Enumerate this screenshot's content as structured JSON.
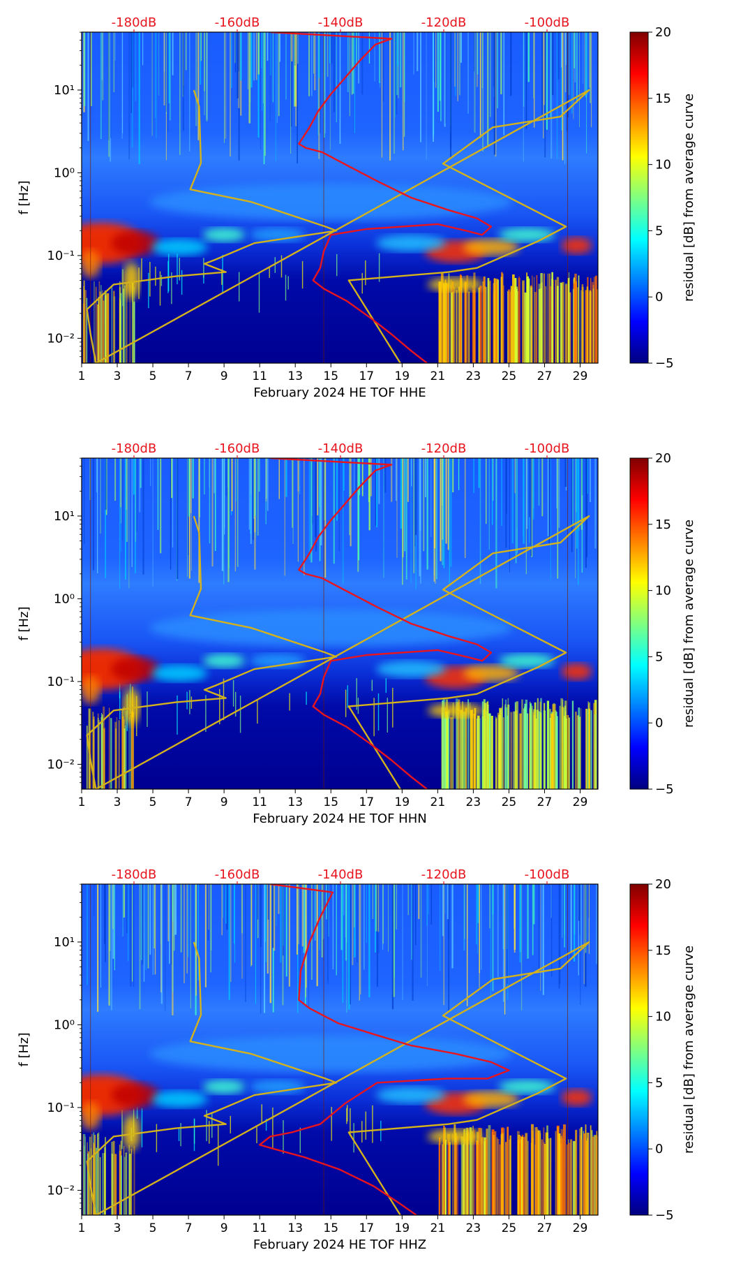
{
  "palette": {
    "noise_model_curve": "#d4b21c",
    "median_curve": "#e8141e",
    "db_label_color": "#e8141e",
    "marker_line": "#7a1a00"
  },
  "colorbar": {
    "label": "residual [dB] from average curve",
    "range": [
      -5,
      20
    ],
    "ticks": [
      "20",
      "15",
      "10",
      "5",
      "0",
      "−5"
    ],
    "colors": [
      "#00007f",
      "#0000ff",
      "#0080ff",
      "#00ffff",
      "#80ff80",
      "#ffff00",
      "#ff8000",
      "#ff0000",
      "#7f0000"
    ]
  },
  "chart_data": [
    {
      "type": "heatmap",
      "xlabel": "February 2024 HE TOF  HHE",
      "ylabel": "f [Hz]",
      "x_ticks": [
        "1",
        "3",
        "5",
        "7",
        "9",
        "11",
        "13",
        "15",
        "17",
        "19",
        "21",
        "23",
        "25",
        "27",
        "29"
      ],
      "y_ticks": [
        "10⁻²",
        "10⁻¹",
        "10⁰",
        "10¹"
      ],
      "top_labels": [
        "-180dB",
        "-160dB",
        "-140dB",
        "-120dB",
        "-100dB"
      ],
      "xlim": [
        1,
        30
      ],
      "ylim_log10": [
        -2.3,
        1.7
      ],
      "median_curve": [
        [
          20.4,
          -2.3
        ],
        [
          19.5,
          -2.15
        ],
        [
          18.4,
          -1.95
        ],
        [
          17.2,
          -1.75
        ],
        [
          15.9,
          -1.55
        ],
        [
          14.6,
          -1.4
        ],
        [
          14,
          -1.3
        ],
        [
          14.4,
          -1.15
        ],
        [
          14.6,
          -0.95
        ],
        [
          15,
          -0.75
        ],
        [
          17,
          -0.68
        ],
        [
          21,
          -0.62
        ],
        [
          22.6,
          -0.7
        ],
        [
          23.5,
          -0.75
        ],
        [
          24,
          -0.65
        ],
        [
          23.2,
          -0.55
        ],
        [
          21.6,
          -0.45
        ],
        [
          19.5,
          -0.3
        ],
        [
          17.6,
          -0.1
        ],
        [
          16,
          0.08
        ],
        [
          14.5,
          0.25
        ],
        [
          13.6,
          0.3
        ],
        [
          13.2,
          0.35
        ],
        [
          13.8,
          0.55
        ],
        [
          14.3,
          0.75
        ],
        [
          15,
          0.95
        ],
        [
          15.8,
          1.15
        ],
        [
          16.6,
          1.35
        ],
        [
          17.5,
          1.55
        ],
        [
          18.4,
          1.62
        ],
        [
          11.6,
          1.7
        ]
      ],
      "noise_model_curve": [
        [
          18.9,
          -2.3
        ],
        [
          16,
          -1.3
        ],
        [
          21.6,
          -1.2
        ],
        [
          23.2,
          -1.15
        ],
        [
          26.6,
          -0.83
        ],
        [
          28.2,
          -0.65
        ],
        [
          21.3,
          0.11
        ],
        [
          24.1,
          0.55
        ],
        [
          27.9,
          0.68
        ],
        [
          29.5,
          1.0
        ],
        [
          1.8,
          -2.3
        ],
        [
          1.5,
          -1.95
        ],
        [
          1.3,
          -1.65
        ],
        [
          2.8,
          -1.35
        ],
        [
          6.3,
          -1.25
        ],
        [
          9.1,
          -1.2
        ],
        [
          7.9,
          -1.1
        ],
        [
          8.5,
          -1.05
        ],
        [
          10.7,
          -0.85
        ],
        [
          15.3,
          -0.7
        ],
        [
          14.7,
          -0.65
        ],
        [
          10.5,
          -0.35
        ],
        [
          7.1,
          -0.2
        ],
        [
          7.7,
          0.12
        ],
        [
          7.6,
          0.8
        ],
        [
          7.3,
          1.0
        ]
      ]
    },
    {
      "type": "heatmap",
      "xlabel": "February 2024 HE TOF  HHN",
      "ylabel": "f [Hz]",
      "x_ticks": [
        "1",
        "3",
        "5",
        "7",
        "9",
        "11",
        "13",
        "15",
        "17",
        "19",
        "21",
        "23",
        "25",
        "27",
        "29"
      ],
      "y_ticks": [
        "10⁻²",
        "10⁻¹",
        "10⁰",
        "10¹"
      ],
      "top_labels": [
        "-180dB",
        "-160dB",
        "-140dB",
        "-120dB",
        "-100dB"
      ],
      "xlim": [
        1,
        30
      ],
      "ylim_log10": [
        -2.3,
        1.7
      ],
      "median_curve": [
        [
          20.4,
          -2.3
        ],
        [
          19.5,
          -2.15
        ],
        [
          18.4,
          -1.95
        ],
        [
          17.2,
          -1.75
        ],
        [
          15.9,
          -1.55
        ],
        [
          14.6,
          -1.4
        ],
        [
          14,
          -1.3
        ],
        [
          14.4,
          -1.15
        ],
        [
          14.6,
          -0.95
        ],
        [
          15,
          -0.75
        ],
        [
          17,
          -0.68
        ],
        [
          21,
          -0.62
        ],
        [
          22.6,
          -0.7
        ],
        [
          23.5,
          -0.75
        ],
        [
          24,
          -0.65
        ],
        [
          23.2,
          -0.55
        ],
        [
          21.6,
          -0.45
        ],
        [
          19.5,
          -0.3
        ],
        [
          17.6,
          -0.1
        ],
        [
          16,
          0.08
        ],
        [
          14.5,
          0.25
        ],
        [
          13.6,
          0.3
        ],
        [
          13.2,
          0.35
        ],
        [
          13.8,
          0.55
        ],
        [
          14.3,
          0.75
        ],
        [
          15,
          0.95
        ],
        [
          15.8,
          1.15
        ],
        [
          16.6,
          1.35
        ],
        [
          17.5,
          1.55
        ],
        [
          18.4,
          1.62
        ],
        [
          11.6,
          1.7
        ]
      ],
      "noise_model_curve": [
        [
          18.9,
          -2.3
        ],
        [
          16,
          -1.3
        ],
        [
          21.6,
          -1.2
        ],
        [
          23.2,
          -1.15
        ],
        [
          26.6,
          -0.83
        ],
        [
          28.2,
          -0.65
        ],
        [
          21.3,
          0.11
        ],
        [
          24.1,
          0.55
        ],
        [
          27.9,
          0.68
        ],
        [
          29.5,
          1.0
        ],
        [
          1.8,
          -2.3
        ],
        [
          1.5,
          -1.95
        ],
        [
          1.3,
          -1.65
        ],
        [
          2.8,
          -1.35
        ],
        [
          6.3,
          -1.25
        ],
        [
          9.1,
          -1.2
        ],
        [
          7.9,
          -1.1
        ],
        [
          8.5,
          -1.05
        ],
        [
          10.7,
          -0.85
        ],
        [
          15.3,
          -0.7
        ],
        [
          14.7,
          -0.65
        ],
        [
          10.5,
          -0.35
        ],
        [
          7.1,
          -0.2
        ],
        [
          7.7,
          0.12
        ],
        [
          7.6,
          0.8
        ],
        [
          7.3,
          1.0
        ]
      ]
    },
    {
      "type": "heatmap",
      "xlabel": "February 2024 HE TOF  HHZ",
      "ylabel": "f [Hz]",
      "x_ticks": [
        "1",
        "3",
        "5",
        "7",
        "9",
        "11",
        "13",
        "15",
        "17",
        "19",
        "21",
        "23",
        "25",
        "27",
        "29"
      ],
      "y_ticks": [
        "10⁻²",
        "10⁻¹",
        "10⁰",
        "10¹"
      ],
      "top_labels": [
        "-180dB",
        "-160dB",
        "-140dB",
        "-120dB",
        "-100dB"
      ],
      "xlim": [
        1,
        30
      ],
      "ylim_log10": [
        -2.3,
        1.7
      ],
      "median_curve": [
        [
          19.8,
          -2.3
        ],
        [
          18.8,
          -2.15
        ],
        [
          17.4,
          -1.95
        ],
        [
          15.5,
          -1.75
        ],
        [
          13.5,
          -1.6
        ],
        [
          11.8,
          -1.5
        ],
        [
          11,
          -1.45
        ],
        [
          11.6,
          -1.35
        ],
        [
          12.8,
          -1.3
        ],
        [
          14.4,
          -1.2
        ],
        [
          15.8,
          -0.95
        ],
        [
          17.6,
          -0.7
        ],
        [
          21.5,
          -0.65
        ],
        [
          23.8,
          -0.65
        ],
        [
          25,
          -0.55
        ],
        [
          24,
          -0.45
        ],
        [
          22,
          -0.35
        ],
        [
          19.5,
          -0.25
        ],
        [
          17.5,
          -0.12
        ],
        [
          15.4,
          0.02
        ],
        [
          13.8,
          0.2
        ],
        [
          13.2,
          0.3
        ],
        [
          13.3,
          0.65
        ],
        [
          13.8,
          1.0
        ],
        [
          14.4,
          1.3
        ],
        [
          15.1,
          1.6
        ],
        [
          11.6,
          1.7
        ]
      ],
      "noise_model_curve": [
        [
          18.9,
          -2.3
        ],
        [
          16,
          -1.3
        ],
        [
          21.6,
          -1.2
        ],
        [
          23.2,
          -1.15
        ],
        [
          26.6,
          -0.83
        ],
        [
          28.2,
          -0.65
        ],
        [
          21.3,
          0.11
        ],
        [
          24.1,
          0.55
        ],
        [
          27.9,
          0.68
        ],
        [
          29.5,
          1.0
        ],
        [
          1.8,
          -2.3
        ],
        [
          1.5,
          -1.95
        ],
        [
          1.3,
          -1.65
        ],
        [
          2.8,
          -1.35
        ],
        [
          6.3,
          -1.25
        ],
        [
          9.1,
          -1.2
        ],
        [
          7.9,
          -1.1
        ],
        [
          8.5,
          -1.05
        ],
        [
          10.7,
          -0.85
        ],
        [
          15.3,
          -0.7
        ],
        [
          14.7,
          -0.65
        ],
        [
          10.5,
          -0.35
        ],
        [
          7.1,
          -0.2
        ],
        [
          7.7,
          0.12
        ],
        [
          7.6,
          0.8
        ],
        [
          7.3,
          1.0
        ]
      ]
    }
  ]
}
